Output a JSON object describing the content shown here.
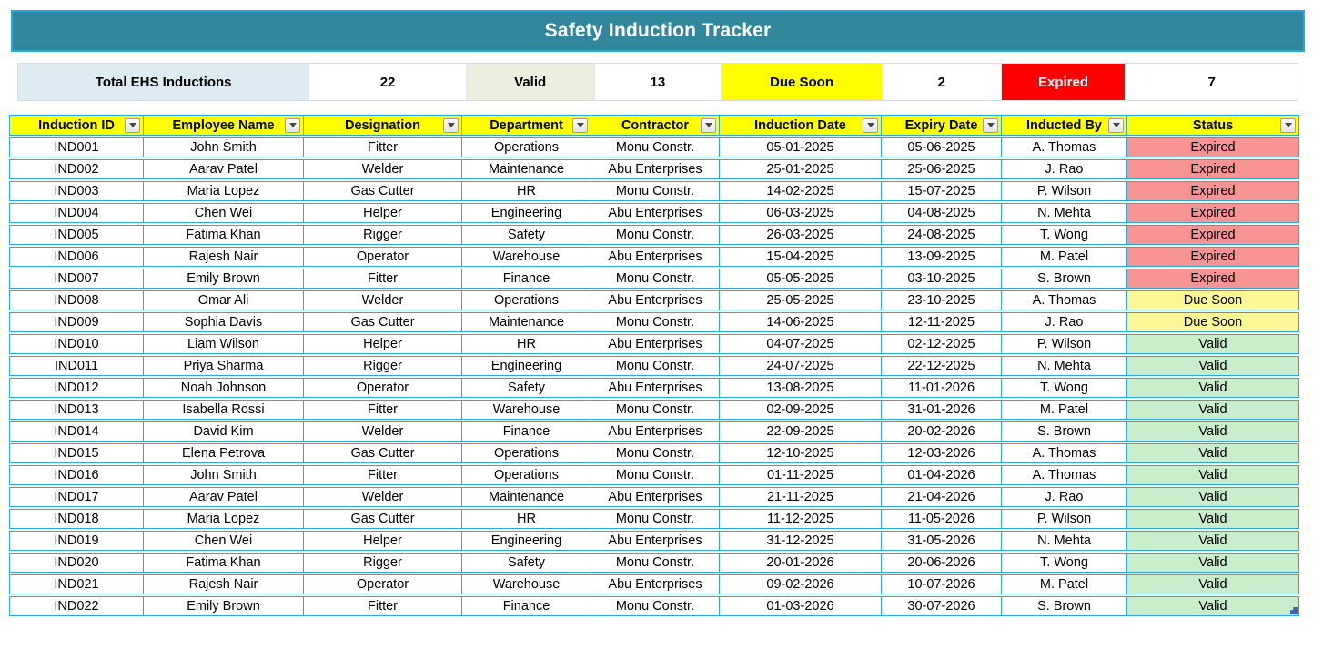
{
  "title": "Safety Induction Tracker",
  "summary": {
    "total_label": "Total EHS Inductions",
    "total_value": "22",
    "valid_label": "Valid",
    "valid_value": "13",
    "due_soon_label": "Due Soon",
    "due_soon_value": "2",
    "expired_label": "Expired",
    "expired_value": "7"
  },
  "table": {
    "columns": [
      "Induction ID",
      "Employee Name",
      "Designation",
      "Department",
      "Contractor",
      "Induction Date",
      "Expiry Date",
      "Inducted By",
      "Status"
    ],
    "column_keys": [
      "induction-id",
      "employee-name",
      "designation",
      "department",
      "contractor",
      "induction-date",
      "expiry-date",
      "inducted-by",
      "status"
    ],
    "rows": [
      [
        "IND001",
        "John Smith",
        "Fitter",
        "Operations",
        "Monu Constr.",
        "05-01-2025",
        "05-06-2025",
        "A. Thomas",
        "Expired"
      ],
      [
        "IND002",
        "Aarav Patel",
        "Welder",
        "Maintenance",
        "Abu Enterprises",
        "25-01-2025",
        "25-06-2025",
        "J. Rao",
        "Expired"
      ],
      [
        "IND003",
        "Maria Lopez",
        "Gas Cutter",
        "HR",
        "Monu Constr.",
        "14-02-2025",
        "15-07-2025",
        "P. Wilson",
        "Expired"
      ],
      [
        "IND004",
        "Chen Wei",
        "Helper",
        "Engineering",
        "Abu Enterprises",
        "06-03-2025",
        "04-08-2025",
        "N. Mehta",
        "Expired"
      ],
      [
        "IND005",
        "Fatima Khan",
        "Rigger",
        "Safety",
        "Monu Constr.",
        "26-03-2025",
        "24-08-2025",
        "T. Wong",
        "Expired"
      ],
      [
        "IND006",
        "Rajesh Nair",
        "Operator",
        "Warehouse",
        "Abu Enterprises",
        "15-04-2025",
        "13-09-2025",
        "M. Patel",
        "Expired"
      ],
      [
        "IND007",
        "Emily Brown",
        "Fitter",
        "Finance",
        "Monu Constr.",
        "05-05-2025",
        "03-10-2025",
        "S. Brown",
        "Expired"
      ],
      [
        "IND008",
        "Omar Ali",
        "Welder",
        "Operations",
        "Abu Enterprises",
        "25-05-2025",
        "23-10-2025",
        "A. Thomas",
        "Due Soon"
      ],
      [
        "IND009",
        "Sophia Davis",
        "Gas Cutter",
        "Maintenance",
        "Monu Constr.",
        "14-06-2025",
        "12-11-2025",
        "J. Rao",
        "Due Soon"
      ],
      [
        "IND010",
        "Liam Wilson",
        "Helper",
        "HR",
        "Abu Enterprises",
        "04-07-2025",
        "02-12-2025",
        "P. Wilson",
        "Valid"
      ],
      [
        "IND011",
        "Priya Sharma",
        "Rigger",
        "Engineering",
        "Monu Constr.",
        "24-07-2025",
        "22-12-2025",
        "N. Mehta",
        "Valid"
      ],
      [
        "IND012",
        "Noah Johnson",
        "Operator",
        "Safety",
        "Abu Enterprises",
        "13-08-2025",
        "11-01-2026",
        "T. Wong",
        "Valid"
      ],
      [
        "IND013",
        "Isabella Rossi",
        "Fitter",
        "Warehouse",
        "Monu Constr.",
        "02-09-2025",
        "31-01-2026",
        "M. Patel",
        "Valid"
      ],
      [
        "IND014",
        "David Kim",
        "Welder",
        "Finance",
        "Abu Enterprises",
        "22-09-2025",
        "20-02-2026",
        "S. Brown",
        "Valid"
      ],
      [
        "IND015",
        "Elena Petrova",
        "Gas Cutter",
        "Operations",
        "Monu Constr.",
        "12-10-2025",
        "12-03-2026",
        "A. Thomas",
        "Valid"
      ],
      [
        "IND016",
        "John Smith",
        "Fitter",
        "Operations",
        "Monu Constr.",
        "01-11-2025",
        "01-04-2026",
        "A. Thomas",
        "Valid"
      ],
      [
        "IND017",
        "Aarav Patel",
        "Welder",
        "Maintenance",
        "Abu Enterprises",
        "21-11-2025",
        "21-04-2026",
        "J. Rao",
        "Valid"
      ],
      [
        "IND018",
        "Maria Lopez",
        "Gas Cutter",
        "HR",
        "Monu Constr.",
        "11-12-2025",
        "11-05-2026",
        "P. Wilson",
        "Valid"
      ],
      [
        "IND019",
        "Chen Wei",
        "Helper",
        "Engineering",
        "Abu Enterprises",
        "31-12-2025",
        "31-05-2026",
        "N. Mehta",
        "Valid"
      ],
      [
        "IND020",
        "Fatima Khan",
        "Rigger",
        "Safety",
        "Monu Constr.",
        "20-01-2026",
        "20-06-2026",
        "T. Wong",
        "Valid"
      ],
      [
        "IND021",
        "Rajesh Nair",
        "Operator",
        "Warehouse",
        "Abu Enterprises",
        "09-02-2026",
        "10-07-2026",
        "M. Patel",
        "Valid"
      ],
      [
        "IND022",
        "Emily Brown",
        "Fitter",
        "Finance",
        "Monu Constr.",
        "01-03-2026",
        "30-07-2026",
        "S. Brown",
        "Valid"
      ]
    ],
    "status_classes": {
      "Expired": "status-expired",
      "Due Soon": "status-due",
      "Valid": "status-valid"
    }
  },
  "icons": {
    "filter_dropdown": "filter-dropdown-icon",
    "resize_handle": "table-resize-handle"
  },
  "colors": {
    "banner_teal": "#31879B",
    "banner_border_cyan": "#2AA9DC",
    "grid_border_cyan": "#29A9DC",
    "header_yellow": "#FFFF00",
    "summary_light_blue": "#DDEBF2",
    "summary_olive": "#EBEFDD",
    "summary_yellow": "#FFFF00",
    "summary_red": "#FF0000",
    "status_expired_fill": "#F89494",
    "status_due_soon_fill": "#FCF796",
    "status_valid_fill": "#C9EDCB"
  }
}
